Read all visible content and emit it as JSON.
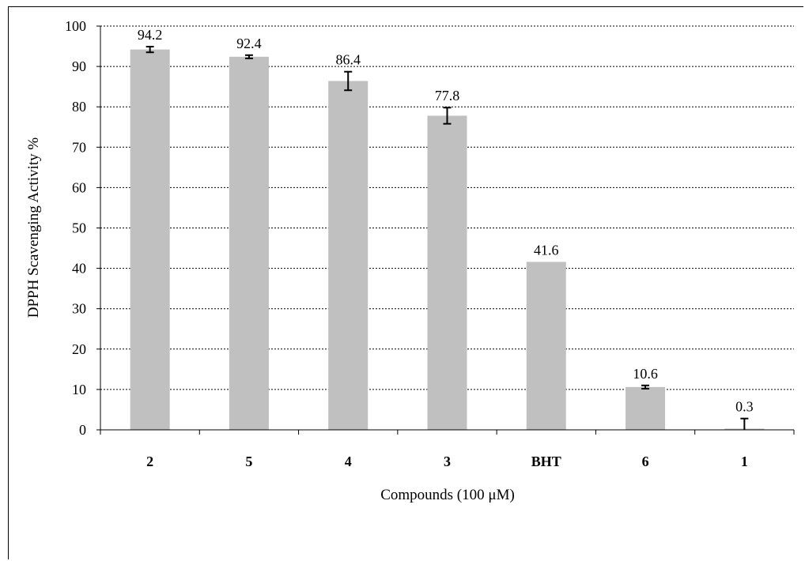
{
  "chart_data": {
    "type": "bar",
    "title": "",
    "xlabel": "Compounds (100 μM)",
    "ylabel": "DPPH Scavenging Activity %",
    "categories": [
      "2",
      "5",
      "4",
      "3",
      "BHT",
      "6",
      "1"
    ],
    "values": [
      94.2,
      92.4,
      86.4,
      77.8,
      41.6,
      10.6,
      0.3
    ],
    "data_labels": [
      "94.2",
      "92.4",
      "86.4",
      "77.8",
      "41.6",
      "10.6",
      "0.3"
    ],
    "errors": [
      0.7,
      0.4,
      2.3,
      2.0,
      0,
      0.4,
      2.5
    ],
    "ylim": [
      0,
      100
    ],
    "yticks": [
      "0",
      "10",
      "20",
      "30",
      "40",
      "50",
      "60",
      "70",
      "80",
      "90",
      "100"
    ],
    "grid": "horizontal-dashed",
    "legend": "none",
    "colors": {
      "bar": "#c0c0c0",
      "error_bar": "#000000",
      "grid": "#000000"
    }
  }
}
